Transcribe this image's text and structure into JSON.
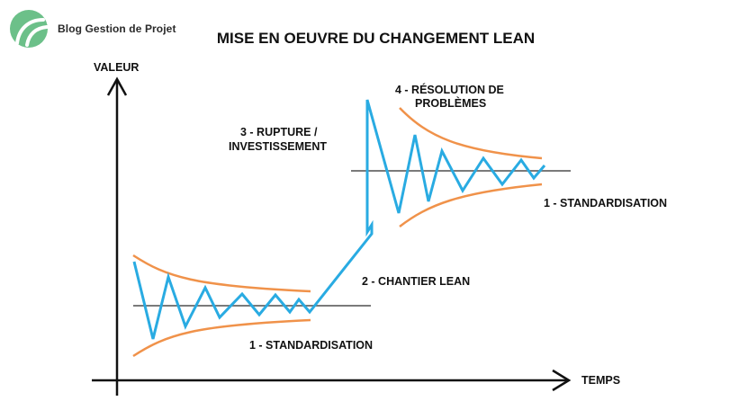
{
  "brand": {
    "name": "Blog Gestion de Projet"
  },
  "title": "MISE EN OEUVRE DU CHANGEMENT LEAN",
  "axes": {
    "y_label": "VALEUR",
    "x_label": "TEMPS"
  },
  "phases": {
    "standardisation_1": "1 - STANDARDISATION",
    "chantier_lean": "2 - CHANTIER LEAN",
    "rupture_line1": "3 - RUPTURE /",
    "rupture_line2": "INVESTISSEMENT",
    "resolution_line1": "4 - RÉSOLUTION DE",
    "resolution_line2": "PROBLÈMES",
    "standardisation_2": "1 - STANDARDISATION"
  },
  "colors": {
    "signal": "#29abe2",
    "envelope": "#f0924a",
    "baseline": "#7a7a7a",
    "axis": "#111111",
    "logo": "#6cc089"
  }
}
